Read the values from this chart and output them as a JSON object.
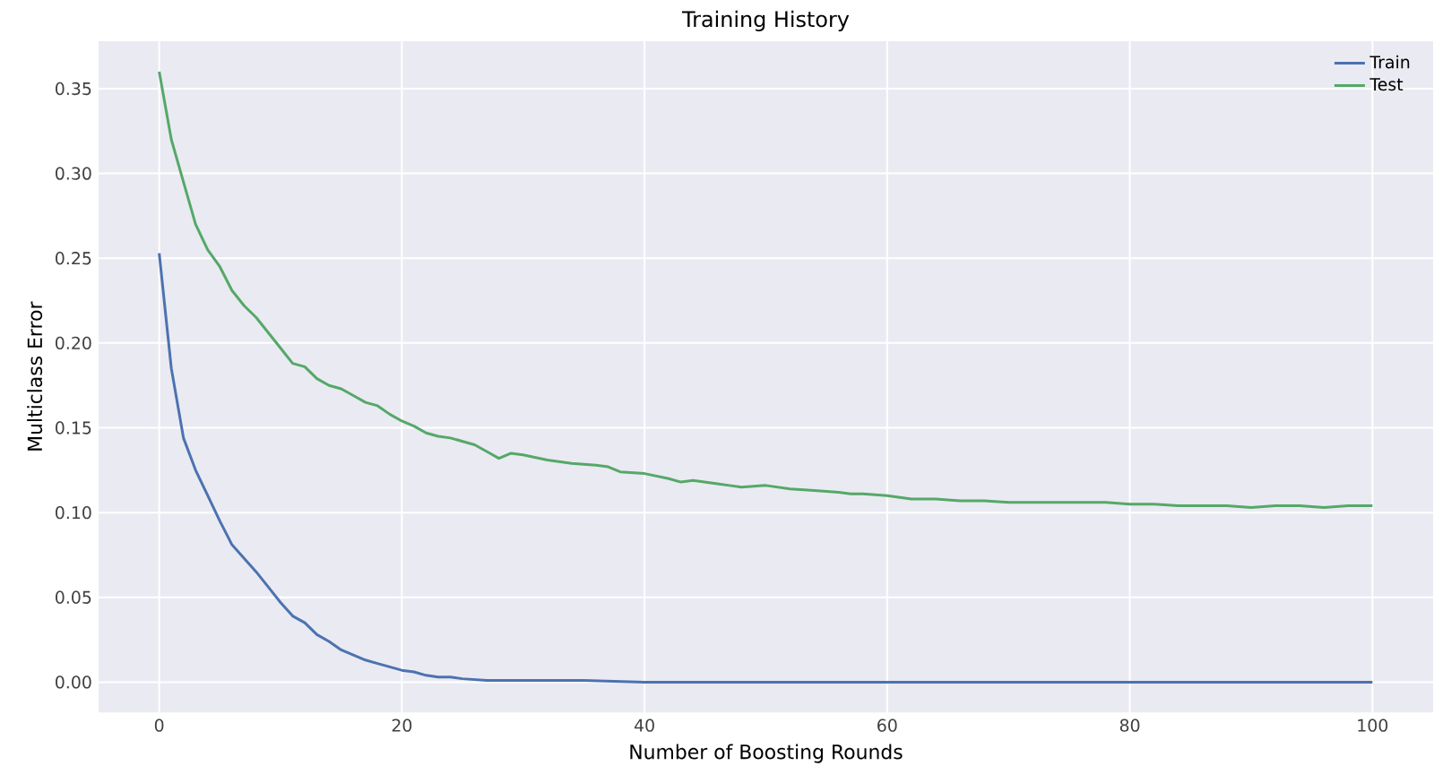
{
  "chart_data": {
    "type": "line",
    "title": "Training History",
    "xlabel": "Number of Boosting Rounds",
    "ylabel": "Multiclass Error",
    "xlim": [
      -5,
      105
    ],
    "ylim": [
      -0.018,
      0.378
    ],
    "xticks": [
      0,
      20,
      40,
      60,
      80,
      100
    ],
    "yticks": [
      {
        "value": 0,
        "label": "0.00"
      },
      {
        "value": 0.05,
        "label": "0.05"
      },
      {
        "value": 0.1,
        "label": "0.10"
      },
      {
        "value": 0.15,
        "label": "0.15"
      },
      {
        "value": 0.2,
        "label": "0.20"
      },
      {
        "value": 0.25,
        "label": "0.25"
      },
      {
        "value": 0.3,
        "label": "0.30"
      },
      {
        "value": 0.35,
        "label": "0.35"
      }
    ],
    "grid": true,
    "legend": "top right",
    "series": [
      {
        "name": "Train",
        "color": "#4c72b0",
        "x": [
          0,
          1,
          2,
          3,
          4,
          5,
          6,
          7,
          8,
          9,
          10,
          11,
          12,
          13,
          14,
          15,
          16,
          17,
          18,
          19,
          20,
          21,
          22,
          23,
          24,
          25,
          27,
          30,
          35,
          40,
          50,
          60,
          70,
          80,
          90,
          100
        ],
        "values": [
          0.253,
          0.185,
          0.144,
          0.125,
          0.11,
          0.095,
          0.081,
          0.073,
          0.065,
          0.056,
          0.047,
          0.039,
          0.035,
          0.028,
          0.024,
          0.019,
          0.016,
          0.013,
          0.011,
          0.009,
          0.007,
          0.006,
          0.004,
          0.003,
          0.003,
          0.002,
          0.001,
          0.001,
          0.001,
          0,
          0,
          0,
          0,
          0,
          0,
          0
        ]
      },
      {
        "name": "Test",
        "color": "#55a868",
        "x": [
          0,
          1,
          2,
          3,
          4,
          5,
          6,
          7,
          8,
          9,
          10,
          11,
          12,
          13,
          14,
          15,
          16,
          17,
          18,
          19,
          20,
          21,
          22,
          23,
          24,
          25,
          26,
          27,
          28,
          29,
          30,
          32,
          34,
          36,
          37,
          38,
          40,
          42,
          43,
          44,
          46,
          47,
          48,
          50,
          52,
          54,
          56,
          57,
          58,
          60,
          62,
          64,
          66,
          68,
          70,
          72,
          74,
          76,
          78,
          80,
          82,
          84,
          86,
          88,
          90,
          92,
          94,
          96,
          98,
          100
        ],
        "values": [
          0.36,
          0.32,
          0.295,
          0.27,
          0.255,
          0.245,
          0.231,
          0.222,
          0.215,
          0.206,
          0.197,
          0.188,
          0.186,
          0.179,
          0.175,
          0.173,
          0.169,
          0.165,
          0.163,
          0.158,
          0.154,
          0.151,
          0.147,
          0.145,
          0.144,
          0.142,
          0.14,
          0.136,
          0.132,
          0.135,
          0.134,
          0.131,
          0.129,
          0.128,
          0.127,
          0.124,
          0.123,
          0.12,
          0.118,
          0.119,
          0.117,
          0.116,
          0.115,
          0.116,
          0.114,
          0.113,
          0.112,
          0.111,
          0.111,
          0.11,
          0.108,
          0.108,
          0.107,
          0.107,
          0.106,
          0.106,
          0.106,
          0.106,
          0.106,
          0.105,
          0.105,
          0.104,
          0.104,
          0.104,
          0.103,
          0.104,
          0.104,
          0.103,
          0.104,
          0.104
        ]
      }
    ]
  }
}
